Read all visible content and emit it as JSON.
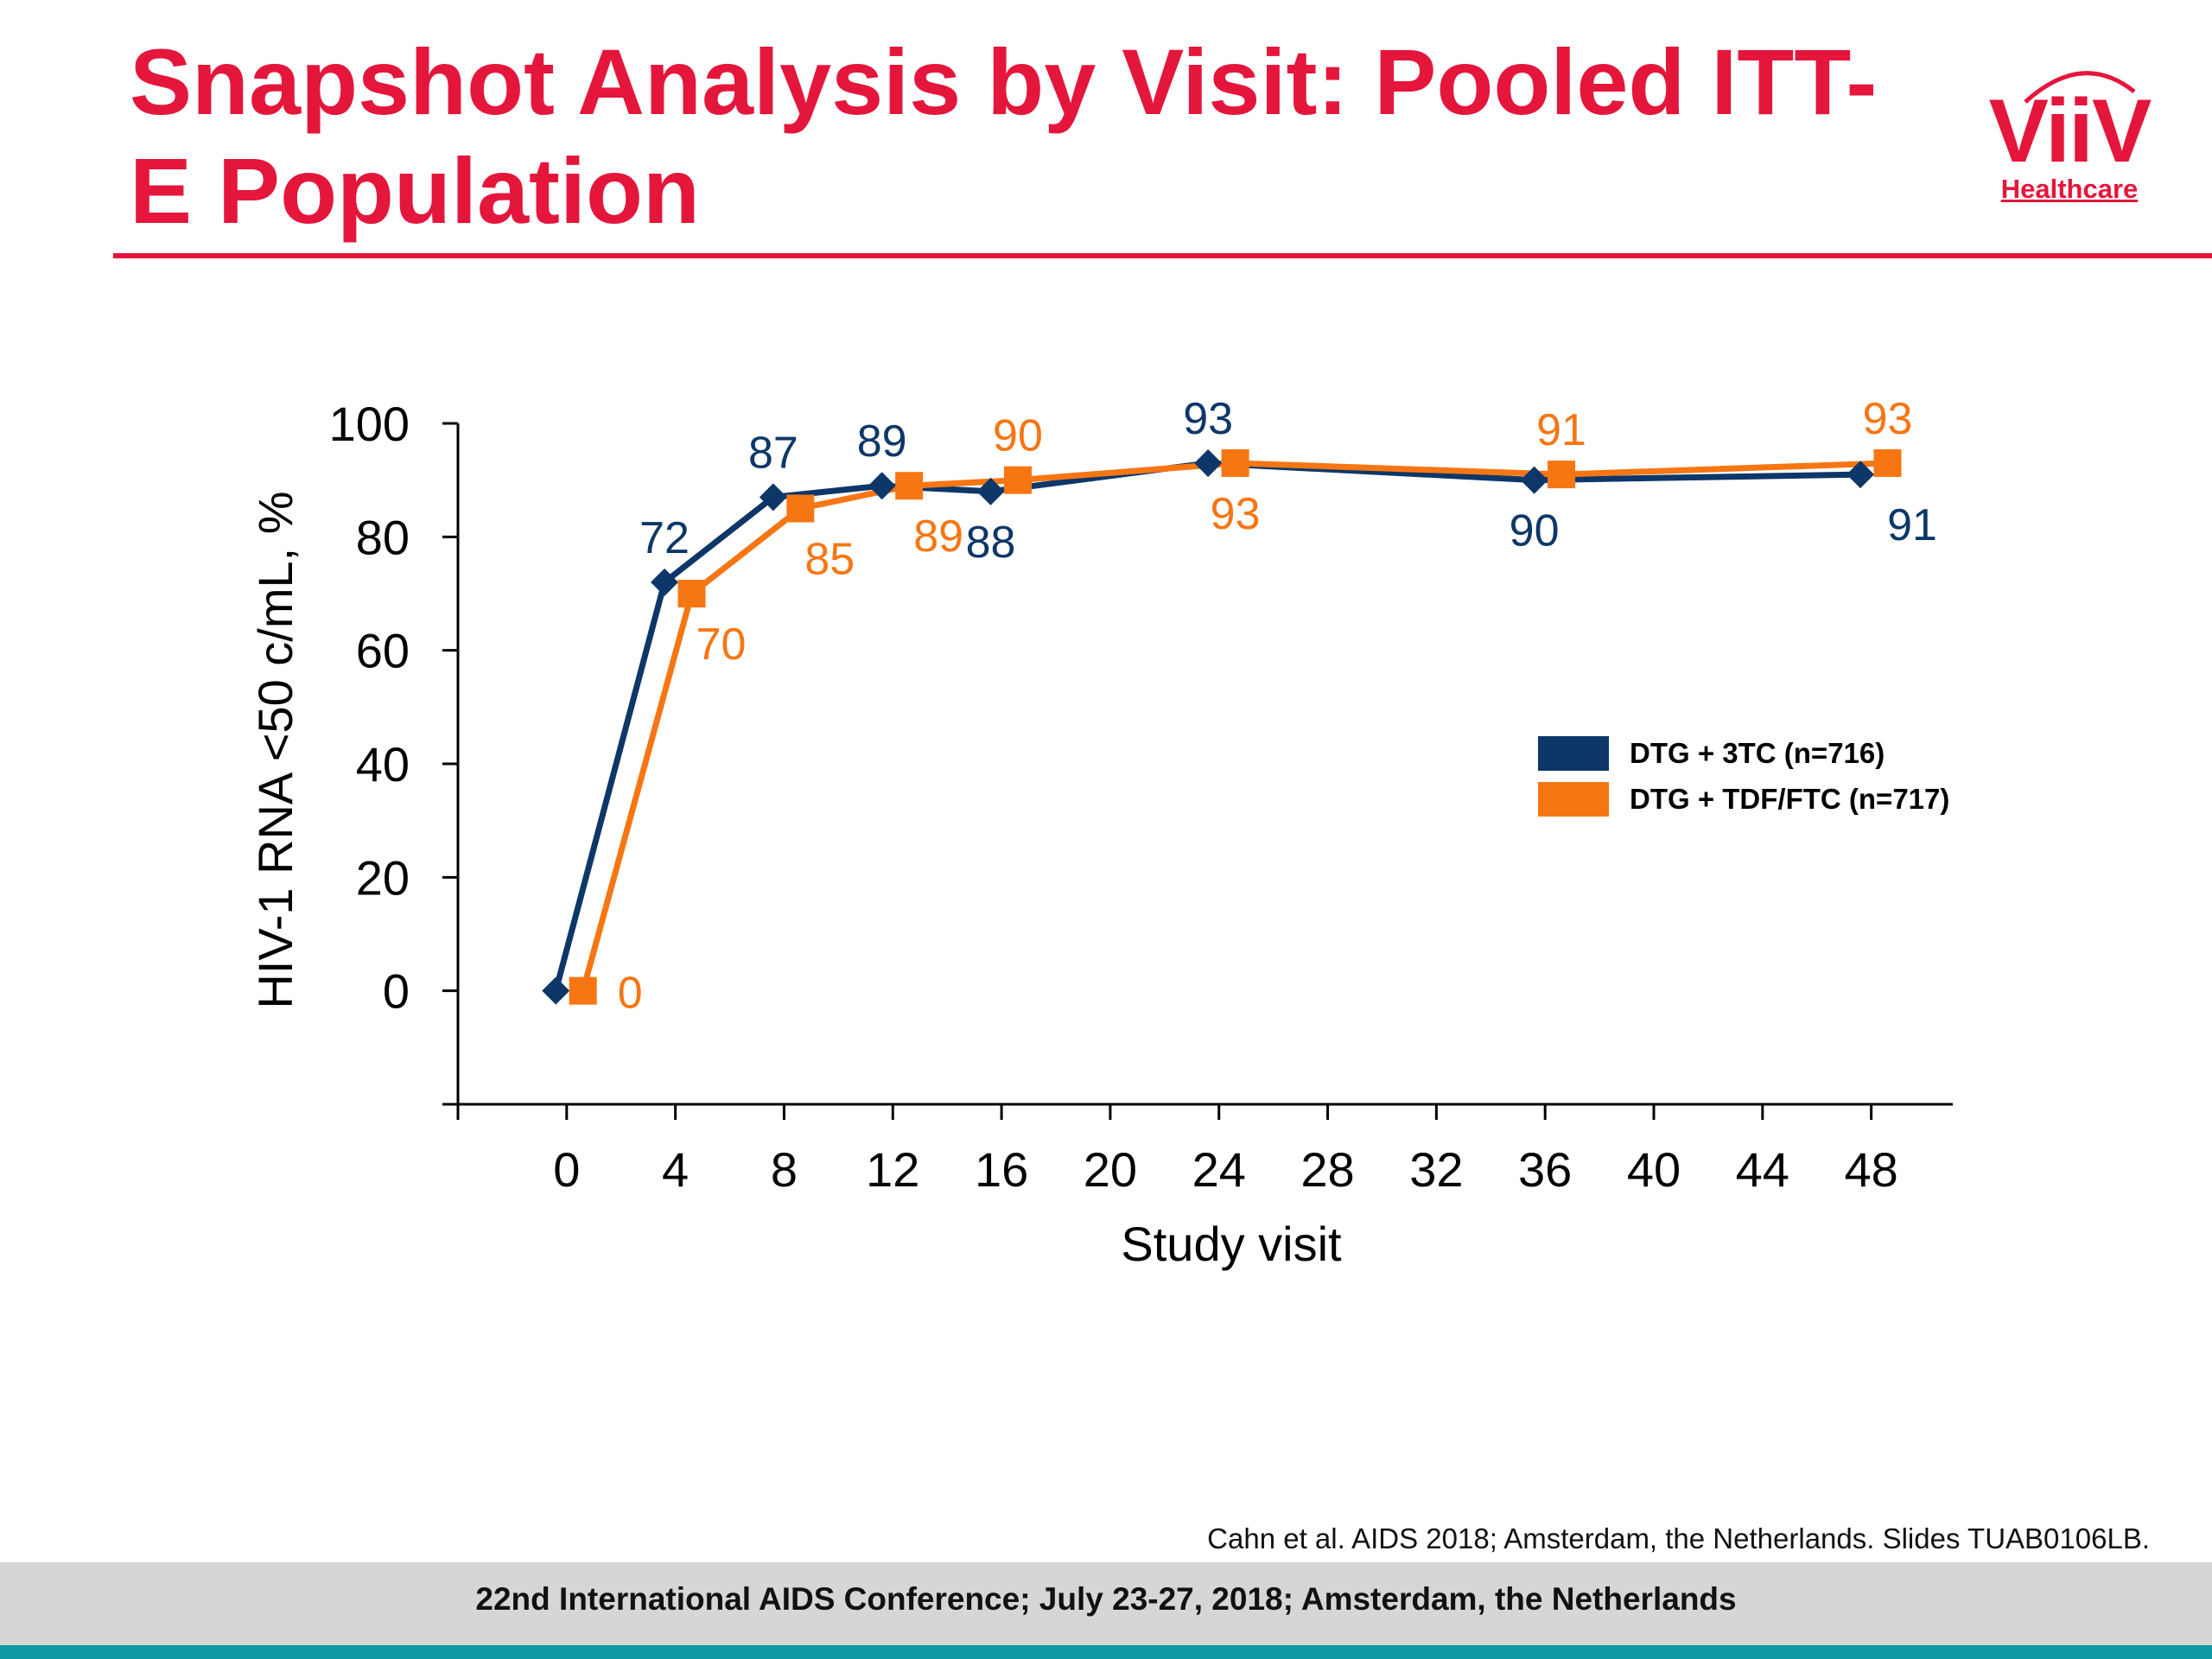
{
  "slide": {
    "title": "Snapshot Analysis by Visit: Pooled ITT-E Population",
    "logo_text": "ViiV",
    "logo_subtext": "Healthcare",
    "citation": "Cahn et al. AIDS 2018; Amsterdam, the Netherlands. Slides TUAB0106LB.",
    "footer": "22nd International AIDS Conference; July 23-27, 2018; Amsterdam, the Netherlands"
  },
  "colors": {
    "title": "#e4163c",
    "series_dtg_3tc": "#0d3768",
    "series_dtg_tdf_ftc": "#f77614",
    "footer_bar": "#d6d6d6",
    "footer_strip": "#109aa6"
  },
  "chart_data": {
    "type": "line",
    "title": "",
    "xlabel": "Study visit",
    "ylabel": "HIV-1 RNA <50 c/mL, %",
    "x_ticks": [
      0,
      4,
      8,
      12,
      16,
      20,
      24,
      28,
      32,
      36,
      40,
      44,
      48
    ],
    "y_ticks": [
      0,
      20,
      40,
      60,
      80,
      100
    ],
    "xlim": [
      -4,
      51
    ],
    "ylim": [
      -20,
      100
    ],
    "grid": false,
    "legend_position": "right",
    "series": [
      {
        "name": "DTG + 3TC (n=716)",
        "marker": "diamond",
        "x": [
          0,
          4,
          8,
          12,
          16,
          24,
          36,
          48
        ],
        "values": [
          0,
          72,
          87,
          89,
          88,
          93,
          90,
          91
        ],
        "label_placement": [
          "none",
          "above",
          "above",
          "above",
          "below",
          "above",
          "below",
          "below"
        ]
      },
      {
        "name": "DTG + TDF/FTC (n=717)",
        "marker": "square",
        "x": [
          0,
          4,
          8,
          12,
          16,
          24,
          36,
          48
        ],
        "values": [
          0,
          70,
          85,
          89,
          90,
          93,
          91,
          93
        ],
        "label_placement": [
          "right",
          "below",
          "below",
          "below",
          "above",
          "below",
          "above",
          "above"
        ]
      }
    ]
  }
}
